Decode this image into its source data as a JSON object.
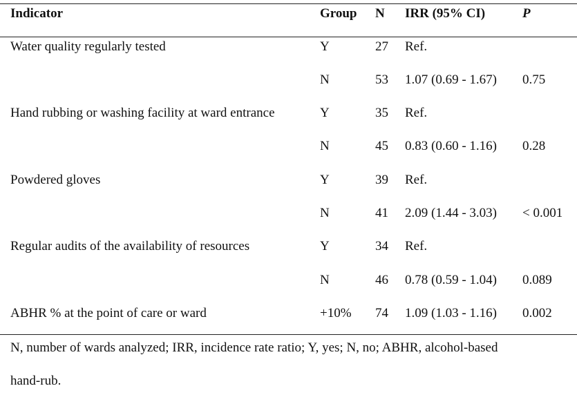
{
  "table": {
    "headers": {
      "indicator": "Indicator",
      "group": "Group",
      "n": "N",
      "irr": "IRR (95% CI)",
      "p": "P"
    },
    "rows": [
      {
        "indicator": "Water quality regularly tested",
        "group": "Y",
        "n": "27",
        "irr": "Ref.",
        "p": ""
      },
      {
        "indicator": "",
        "group": "N",
        "n": "53",
        "irr": "1.07 (0.69 - 1.67)",
        "p": "0.75"
      },
      {
        "indicator": "Hand rubbing or washing facility at ward entrance",
        "group": "Y",
        "n": "35",
        "irr": "Ref.",
        "p": ""
      },
      {
        "indicator": "",
        "group": "N",
        "n": "45",
        "irr": "0.83 (0.60 - 1.16)",
        "p": "0.28"
      },
      {
        "indicator": "Powdered gloves",
        "group": "Y",
        "n": "39",
        "irr": "Ref.",
        "p": ""
      },
      {
        "indicator": "",
        "group": "N",
        "n": "41",
        "irr": "2.09 (1.44 - 3.03)",
        "p": "< 0.001"
      },
      {
        "indicator": "Regular audits of the availability of resources",
        "group": "Y",
        "n": "34",
        "irr": "Ref.",
        "p": ""
      },
      {
        "indicator": "",
        "group": "N",
        "n": "46",
        "irr": "0.78 (0.59 - 1.04)",
        "p": "0.089"
      },
      {
        "indicator": "ABHR % at the point of care or ward",
        "group": "+10%",
        "n": "74",
        "irr": "1.09 (1.03 - 1.16)",
        "p": "0.002"
      }
    ]
  },
  "footnote": {
    "line1": "N, number of wards analyzed; IRR, incidence rate ratio; Y, yes; N, no; ABHR, alcohol-based",
    "line2": "hand-rub."
  }
}
